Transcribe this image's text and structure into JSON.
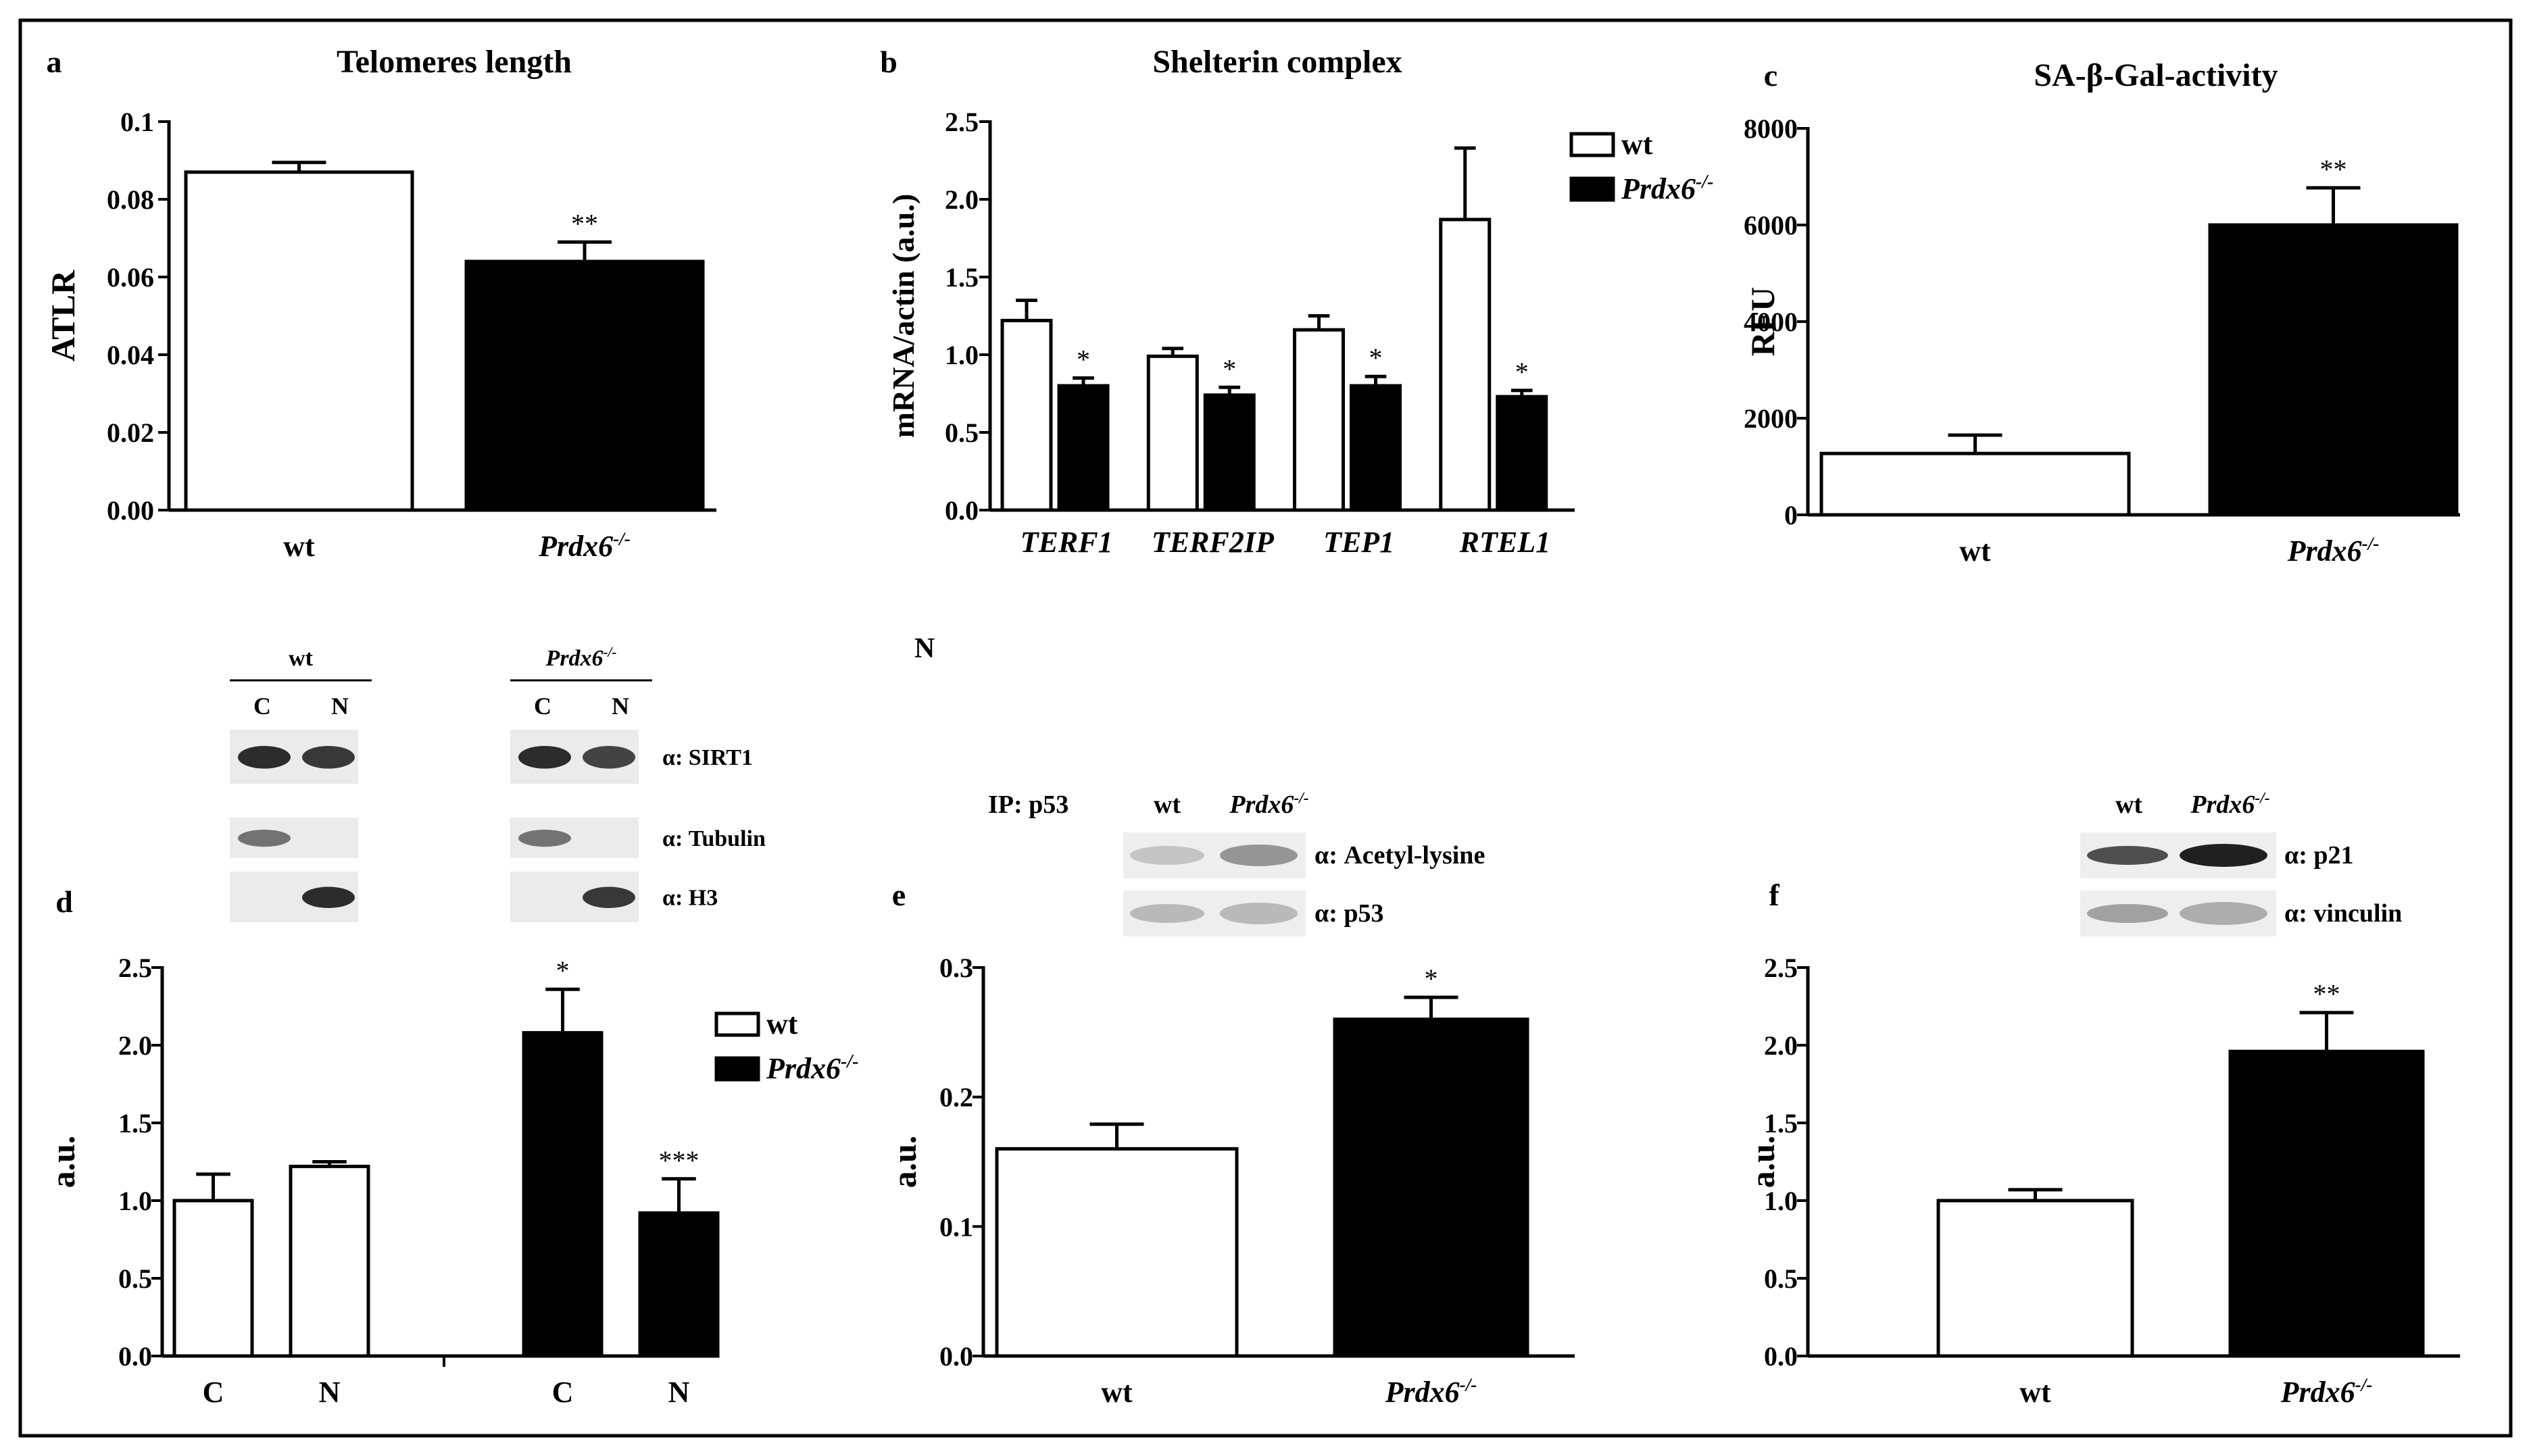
{
  "figure": {
    "colors": {
      "wt": "#ffffff",
      "prdx6": "#000000",
      "axis": "#000000"
    }
  },
  "chart_data": [
    {
      "id": "a",
      "panel_label": "a",
      "type": "bar",
      "title": "Telomeres length",
      "ylabel": "ATLR",
      "xlabel": "",
      "ylim": [
        0,
        0.1
      ],
      "yticks": [
        0,
        0.02,
        0.04,
        0.06,
        0.08,
        0.1
      ],
      "ytick_labels": [
        "0.00",
        "0.02",
        "0.04",
        "0.06",
        "0.08",
        "0.1"
      ],
      "categories": [
        "wt",
        "Prdx6-/-"
      ],
      "category_labels": [
        "wt",
        "Prdx6"
      ],
      "category_sup": [
        "",
        "-/-"
      ],
      "category_italic": [
        false,
        true
      ],
      "series": [
        {
          "name": "wt/Prdx6-/-",
          "values": [
            0.087,
            0.064
          ],
          "errors": [
            0.0025,
            0.005
          ],
          "colors": [
            "#ffffff",
            "#000000"
          ]
        }
      ],
      "annotations": [
        "",
        "**"
      ]
    },
    {
      "id": "b",
      "panel_label": "b",
      "type": "bar",
      "title": "Shelterin complex",
      "ylabel": "mRNA/actin (a.u.)",
      "xlabel": "",
      "ylim": [
        0,
        2.5
      ],
      "yticks": [
        0,
        0.5,
        1.0,
        1.5,
        2.0,
        2.5
      ],
      "ytick_labels": [
        "0.0",
        "0.5",
        "1.0",
        "1.5",
        "2.0",
        "2.5"
      ],
      "categories": [
        "TERF1",
        "TERF2IP",
        "TEP1",
        "RTEL1"
      ],
      "category_labels": [
        "TERF1",
        "TERF2IP",
        "TEP1",
        "RTEL1"
      ],
      "category_italic": [
        true,
        true,
        true,
        true
      ],
      "series": [
        {
          "name": "wt",
          "values": [
            1.22,
            0.99,
            1.16,
            1.87
          ],
          "errors": [
            0.13,
            0.05,
            0.09,
            0.46
          ]
        },
        {
          "name": "Prdx6-/-",
          "values": [
            0.8,
            0.74,
            0.8,
            0.73
          ],
          "errors": [
            0.05,
            0.05,
            0.06,
            0.04
          ]
        }
      ],
      "annotations": [
        "*",
        "*",
        "*",
        "*"
      ],
      "legend": {
        "position": "top-right",
        "entries": [
          "wt",
          "Prdx6"
        ],
        "sup": [
          "",
          "-/-"
        ]
      }
    },
    {
      "id": "c",
      "panel_label": "c",
      "type": "bar",
      "title": "SA-β-Gal-activity",
      "ylabel": "RFU",
      "xlabel": "",
      "ylim": [
        0,
        8000
      ],
      "yticks": [
        0,
        2000,
        4000,
        6000,
        8000
      ],
      "ytick_labels": [
        "0",
        "2000",
        "4000",
        "6000",
        "8000"
      ],
      "categories": [
        "wt",
        "Prdx6-/-"
      ],
      "category_labels": [
        "wt",
        "Prdx6"
      ],
      "category_sup": [
        "",
        "-/-"
      ],
      "category_italic": [
        false,
        true
      ],
      "series": [
        {
          "name": "wt/Prdx6-/-",
          "values": [
            1270,
            6000
          ],
          "errors": [
            380,
            770
          ],
          "colors": [
            "#ffffff",
            "#000000"
          ]
        }
      ],
      "annotations": [
        "",
        "**"
      ]
    },
    {
      "id": "d",
      "panel_label": "d",
      "type": "bar",
      "title": "",
      "ylabel": "a.u.",
      "xlabel": "",
      "ylim": [
        0,
        2.5
      ],
      "yticks": [
        0,
        0.5,
        1.0,
        1.5,
        2.0,
        2.5
      ],
      "ytick_labels": [
        "0.0",
        "0.5",
        "1.0",
        "1.5",
        "2.0",
        "2.5"
      ],
      "categories": [
        "C",
        "N",
        "C",
        "N"
      ],
      "category_labels": [
        "C",
        "N",
        "C",
        "N"
      ],
      "category_italic": [
        false,
        false,
        false,
        false
      ],
      "series": [
        {
          "name": "wt/Prdx6-/-",
          "values": [
            1.0,
            1.22,
            2.08,
            0.92
          ],
          "errors": [
            0.17,
            0.03,
            0.28,
            0.22
          ],
          "colors": [
            "#ffffff",
            "#ffffff",
            "#000000",
            "#000000"
          ]
        }
      ],
      "annotations": [
        "",
        "",
        "*",
        "***"
      ],
      "legend": {
        "position": "top-right",
        "entries": [
          "wt",
          "Prdx6"
        ],
        "sup": [
          "",
          "-/-"
        ]
      }
    },
    {
      "id": "e",
      "panel_label": "e",
      "type": "bar",
      "title": "",
      "ylabel": "a.u.",
      "xlabel": "",
      "ylim": [
        0,
        0.3
      ],
      "yticks": [
        0,
        0.1,
        0.2,
        0.3
      ],
      "ytick_labels": [
        "0.0",
        "0.1",
        "0.2",
        "0.3"
      ],
      "categories": [
        "wt",
        "Prdx6-/-"
      ],
      "category_labels": [
        "wt",
        "Prdx6"
      ],
      "category_sup": [
        "",
        "-/-"
      ],
      "category_italic": [
        false,
        true
      ],
      "series": [
        {
          "name": "wt/Prdx6-/-",
          "values": [
            0.16,
            0.26
          ],
          "errors": [
            0.019,
            0.017
          ],
          "colors": [
            "#ffffff",
            "#000000"
          ]
        }
      ],
      "annotations": [
        "",
        "*"
      ]
    },
    {
      "id": "f",
      "panel_label": "f",
      "type": "bar",
      "title": "",
      "ylabel": "a.u.",
      "xlabel": "",
      "ylim": [
        0,
        2.5
      ],
      "yticks": [
        0,
        0.5,
        1.0,
        1.5,
        2.0,
        2.5
      ],
      "ytick_labels": [
        "0.0",
        "0.5",
        "1.0",
        "1.5",
        "2.0",
        "2.5"
      ],
      "categories": [
        "wt",
        "Prdx6-/-"
      ],
      "category_labels": [
        "wt",
        "Prdx6"
      ],
      "category_sup": [
        "",
        "-/-"
      ],
      "category_italic": [
        false,
        true
      ],
      "series": [
        {
          "name": "wt/Prdx6-/-",
          "values": [
            1.0,
            1.96
          ],
          "errors": [
            0.07,
            0.25
          ],
          "colors": [
            "#ffffff",
            "#000000"
          ]
        }
      ],
      "annotations": [
        "",
        "**"
      ]
    }
  ],
  "blots": {
    "stray_label": "N",
    "d": {
      "groups": [
        {
          "label": "wt",
          "italic": false,
          "sup": "",
          "lanes": [
            "C",
            "N"
          ]
        },
        {
          "label": "Prdx6",
          "italic": true,
          "sup": "-/-",
          "lanes": [
            "C",
            "N"
          ]
        }
      ],
      "rows": [
        "α: SIRT1",
        "α: Tubulin",
        "α: H3"
      ],
      "bands": [
        [
          [
            0.9,
            0.85
          ],
          [
            0.9,
            0.8
          ]
        ],
        [
          [
            0.6,
            0
          ],
          [
            0.6,
            0
          ]
        ],
        [
          [
            0,
            0.9
          ],
          [
            0,
            0.85
          ]
        ]
      ]
    },
    "e": {
      "ip_label": "IP: p53",
      "lanes": [
        "wt",
        "Prdx6"
      ],
      "lane_sup": [
        "",
        "-/-"
      ],
      "lane_italic": [
        false,
        true
      ],
      "rows": [
        "α: Acetyl-lysine",
        "α: p53"
      ],
      "bands": [
        [
          0.25,
          0.45
        ],
        [
          0.3,
          0.3
        ]
      ]
    },
    "f": {
      "lanes": [
        "wt",
        "Prdx6"
      ],
      "lane_sup": [
        "",
        "-/-"
      ],
      "lane_italic": [
        false,
        true
      ],
      "rows": [
        "α: p21",
        "α: vinculin"
      ],
      "bands": [
        [
          0.75,
          0.95
        ],
        [
          0.4,
          0.35
        ]
      ]
    }
  }
}
